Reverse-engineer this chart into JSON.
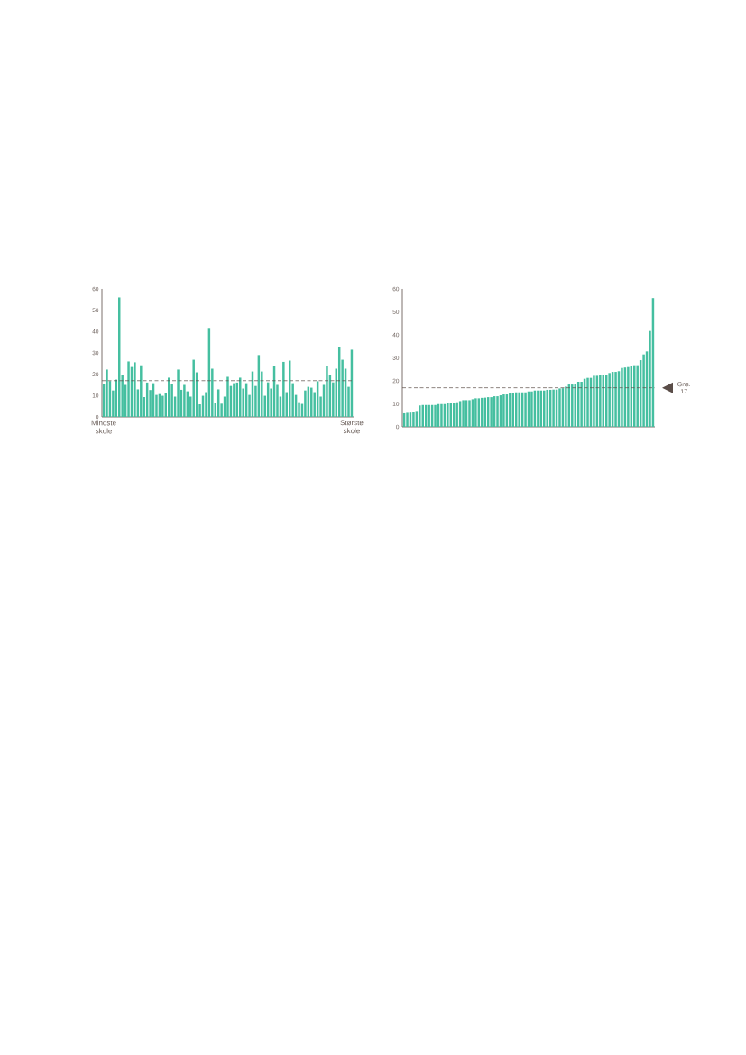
{
  "chart_data": [
    {
      "type": "bar",
      "categories": [
        "Mindste skole",
        null,
        null,
        null,
        null,
        null,
        null,
        null,
        null,
        null,
        null,
        null,
        null,
        null,
        null,
        null,
        null,
        null,
        null,
        null,
        null,
        null,
        null,
        null,
        null,
        null,
        null,
        null,
        null,
        null,
        null,
        null,
        null,
        null,
        null,
        null,
        null,
        null,
        null,
        null,
        null,
        null,
        null,
        null,
        null,
        null,
        null,
        null,
        null,
        null,
        null,
        null,
        null,
        null,
        null,
        null,
        null,
        null,
        null,
        null,
        null,
        null,
        null,
        null,
        null,
        null,
        null,
        null,
        null,
        null,
        null,
        null,
        null,
        null,
        null,
        null,
        null,
        null,
        null,
        null,
        "Største skole"
      ],
      "values": [
        15.4,
        22.2,
        16.8,
        12.4,
        17.5,
        56,
        19.6,
        15,
        26,
        23.4,
        25.6,
        12.9,
        24.2,
        9.3,
        16.1,
        12.6,
        15.8,
        10.3,
        10.7,
        9.9,
        11.2,
        18.4,
        15.4,
        9.5,
        22.2,
        12.7,
        15,
        12,
        9.5,
        26.8,
        20.9,
        5.9,
        9.9,
        11.6,
        41.7,
        22.6,
        6.5,
        12.9,
        6.2,
        9.5,
        18.8,
        14.5,
        15.8,
        16.1,
        18.4,
        13.3,
        15.8,
        10.3,
        21.3,
        14.5,
        29,
        21.3,
        9.9,
        16.2,
        13.3,
        23.9,
        15,
        9.5,
        25.8,
        11.6,
        26.4,
        15.8,
        10.3,
        6.9,
        6.1,
        12.4,
        14.1,
        13.7,
        11.6,
        16.7,
        9.5,
        15,
        23.9,
        19.6,
        16.2,
        22.6,
        32.8,
        26.8,
        22.6,
        14.1,
        31.5
      ],
      "color": "#45bfa0",
      "ylim": [
        0,
        60
      ],
      "yticks": [
        0,
        10,
        20,
        30,
        40,
        50,
        60
      ],
      "ref_lines": [
        {
          "axis": "y",
          "value": 17,
          "color": "#5a4d48",
          "line_style": "dashed"
        }
      ]
    },
    {
      "type": "bar",
      "categories": [
        null,
        null,
        null,
        null,
        null,
        null,
        null,
        null,
        null,
        null,
        null,
        null,
        null,
        null,
        null,
        null,
        null,
        null,
        null,
        null,
        null,
        null,
        null,
        null,
        null,
        null,
        null,
        null,
        null,
        null,
        null,
        null,
        null,
        null,
        null,
        null,
        null,
        null,
        null,
        null,
        null,
        null,
        null,
        null,
        null,
        null,
        null,
        null,
        null,
        null,
        null,
        null,
        null,
        null,
        null,
        null,
        null,
        null,
        null,
        null,
        null,
        null,
        null,
        null,
        null,
        null,
        null,
        null,
        null,
        null,
        null,
        null,
        null,
        null,
        null,
        null,
        null,
        null,
        null,
        null,
        null
      ],
      "values": [
        5.9,
        6.1,
        6.2,
        6.5,
        6.9,
        9.3,
        9.5,
        9.5,
        9.5,
        9.5,
        9.5,
        9.9,
        9.9,
        9.9,
        10.3,
        10.3,
        10.3,
        10.7,
        11.2,
        11.6,
        11.6,
        11.6,
        12,
        12.4,
        12.4,
        12.6,
        12.7,
        12.9,
        12.9,
        13.3,
        13.3,
        13.7,
        14.1,
        14.1,
        14.5,
        14.5,
        15,
        15,
        15,
        15,
        15.4,
        15.4,
        15.8,
        15.8,
        15.8,
        15.8,
        16.1,
        16.1,
        16.2,
        16.2,
        16.7,
        16.8,
        17.5,
        18.4,
        18.4,
        18.8,
        19.6,
        19.6,
        20.9,
        21.3,
        21.3,
        22.2,
        22.2,
        22.6,
        22.6,
        22.6,
        23.4,
        23.9,
        23.9,
        24.2,
        25.6,
        25.8,
        26,
        26.4,
        26.8,
        26.8,
        29,
        31.5,
        32.8,
        41.7,
        56
      ],
      "color": "#45bfa0",
      "ylim": [
        0,
        60
      ],
      "yticks": [
        0,
        10,
        20,
        30,
        40,
        50,
        60
      ],
      "ref_lines": [
        {
          "axis": "y",
          "value": 17,
          "label": "Gns. 17",
          "color": "#5a4d48",
          "line_style": "dashed"
        }
      ]
    }
  ]
}
